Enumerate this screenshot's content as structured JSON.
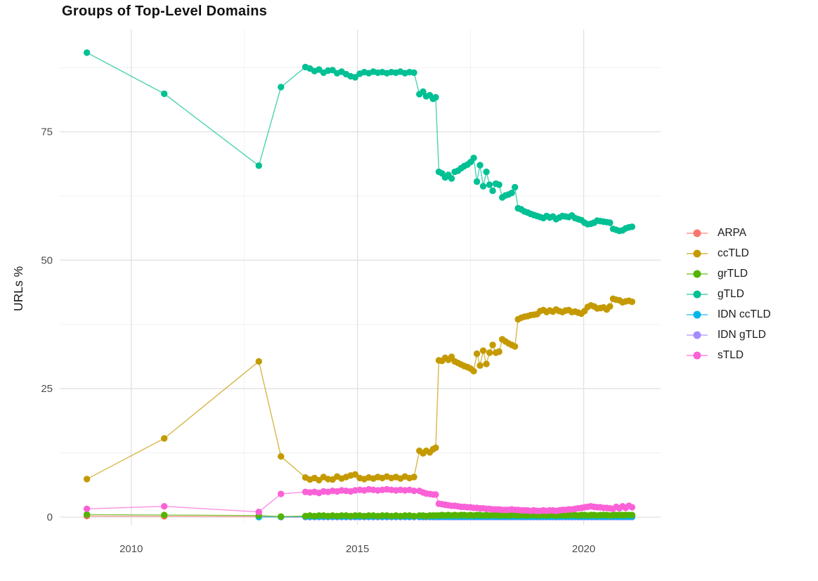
{
  "chart_data": {
    "type": "line",
    "title": "Groups of Top-Level Domains",
    "xlabel": "",
    "ylabel": "URLs %",
    "x_ticks": [
      2010,
      2015,
      2020
    ],
    "x_minor": [
      2012.5,
      2017.5
    ],
    "y_ticks": [
      0,
      25,
      50,
      75
    ],
    "y_minor": [
      12.5,
      37.5,
      62.5,
      87.5
    ],
    "xlim": [
      2008.42,
      2021.7
    ],
    "ylim": [
      -1.5,
      94.9
    ],
    "grid": true,
    "legend_position": "right",
    "draw_order": [
      "ARPA",
      "IDN gTLD",
      "IDN ccTLD",
      "grTLD",
      "ccTLD",
      "gTLD",
      "sTLD"
    ],
    "x": [
      2009.02,
      2010.73,
      2012.82,
      2013.31,
      2013.85,
      2013.95,
      2014.05,
      2014.15,
      2014.25,
      2014.35,
      2014.45,
      2014.55,
      2014.65,
      2014.75,
      2014.85,
      2014.95,
      2015.05,
      2015.15,
      2015.25,
      2015.35,
      2015.45,
      2015.55,
      2015.65,
      2015.75,
      2015.85,
      2015.95,
      2016.05,
      2016.15,
      2016.25,
      2016.37,
      2016.45,
      2016.52,
      2016.6,
      2016.67,
      2016.73,
      2016.8,
      2016.87,
      2016.94,
      2017.01,
      2017.08,
      2017.15,
      2017.22,
      2017.29,
      2017.36,
      2017.43,
      2017.5,
      2017.57,
      2017.64,
      2017.71,
      2017.78,
      2017.85,
      2017.92,
      2017.99,
      2018.06,
      2018.13,
      2018.2,
      2018.27,
      2018.34,
      2018.41,
      2018.48,
      2018.55,
      2018.62,
      2018.69,
      2018.76,
      2018.83,
      2018.9,
      2018.97,
      2019.04,
      2019.11,
      2019.18,
      2019.25,
      2019.32,
      2019.39,
      2019.46,
      2019.53,
      2019.6,
      2019.67,
      2019.74,
      2019.81,
      2019.88,
      2019.95,
      2020.02,
      2020.09,
      2020.16,
      2020.23,
      2020.3,
      2020.37,
      2020.44,
      2020.51,
      2020.58,
      2020.65,
      2020.72,
      2020.79,
      2020.86,
      2020.93,
      2021.0,
      2021.07
    ],
    "series": [
      {
        "name": "ARPA",
        "color": "#F8766D",
        "y": [
          0.2,
          0.15,
          0.1,
          0.05,
          0.05,
          0.05,
          0.05,
          0.05,
          0.05,
          0.05,
          0.05,
          0.05,
          0.05,
          0.05,
          0.05,
          0.05,
          0.05,
          0.05,
          0.05,
          0.05,
          0.05,
          0.05,
          0.05,
          0.05,
          0.05,
          0.05,
          0.05,
          0.05,
          0.05,
          0.05,
          0.05,
          0.05,
          0.05,
          0.05,
          0.05,
          0.05,
          0.05,
          0.05,
          0.05,
          0.05,
          0.05,
          0.05,
          0.05,
          0.05,
          0.05,
          0.05,
          0.05,
          0.05,
          0.05,
          0.05,
          0.05,
          0.05,
          0.05,
          0.05,
          0.05,
          0.05,
          0.05,
          0.05,
          0.05,
          0.05,
          0.05,
          0.05,
          0.05,
          0.05,
          0.05,
          0.05,
          0.05,
          0.05,
          0.05,
          0.05,
          0.05,
          0.05,
          0.05,
          0.05,
          0.05,
          0.05,
          0.05,
          0.05,
          0.05,
          0.05,
          0.05,
          0.05,
          0.05,
          0.05,
          0.05,
          0.05,
          0.05,
          0.05,
          0.05,
          0.05,
          0.05,
          0.05,
          0.05,
          0.05,
          0.05,
          0.05,
          0.05
        ]
      },
      {
        "name": "ccTLD",
        "color": "#C49A00",
        "y": [
          7.4,
          15.3,
          30.3,
          11.8,
          7.7,
          7.3,
          7.6,
          7.2,
          7.8,
          7.4,
          7.3,
          7.9,
          7.5,
          7.8,
          8.1,
          8.3,
          7.6,
          7.4,
          7.7,
          7.5,
          7.8,
          7.6,
          7.9,
          7.6,
          7.8,
          7.5,
          7.9,
          7.6,
          7.8,
          12.9,
          12.4,
          12.9,
          12.6,
          13.2,
          13.5,
          30.5,
          30.4,
          31.0,
          30.6,
          31.2,
          30.3,
          30.0,
          29.7,
          29.4,
          29.2,
          28.9,
          28.4,
          31.8,
          29.5,
          32.4,
          29.8,
          32.0,
          33.5,
          32.0,
          32.2,
          34.6,
          34.2,
          33.8,
          33.5,
          33.2,
          38.5,
          38.8,
          39.0,
          39.1,
          39.3,
          39.4,
          39.5,
          40.1,
          40.3,
          39.9,
          40.2,
          40.0,
          40.4,
          40.1,
          39.9,
          40.2,
          40.3,
          39.9,
          40.0,
          39.8,
          39.6,
          40.1,
          40.9,
          41.2,
          41.0,
          40.6,
          40.7,
          40.8,
          40.4,
          41.0,
          42.5,
          42.3,
          42.2,
          41.8,
          42.0,
          42.1,
          41.9
        ]
      },
      {
        "name": "grTLD",
        "color": "#53B400",
        "y": [
          0.5,
          0.4,
          0.3,
          0.1,
          0.2,
          0.3,
          0.2,
          0.3,
          0.3,
          0.2,
          0.3,
          0.2,
          0.3,
          0.3,
          0.2,
          0.3,
          0.3,
          0.2,
          0.3,
          0.3,
          0.2,
          0.3,
          0.3,
          0.2,
          0.3,
          0.2,
          0.3,
          0.3,
          0.2,
          0.3,
          0.3,
          0.2,
          0.3,
          0.3,
          0.3,
          0.3,
          0.4,
          0.3,
          0.4,
          0.3,
          0.4,
          0.3,
          0.4,
          0.4,
          0.3,
          0.4,
          0.3,
          0.4,
          0.4,
          0.3,
          0.4,
          0.3,
          0.4,
          0.4,
          0.3,
          0.4,
          0.4,
          0.3,
          0.4,
          0.4,
          0.3,
          0.4,
          0.4,
          0.3,
          0.4,
          0.4,
          0.3,
          0.4,
          0.4,
          0.3,
          0.4,
          0.4,
          0.3,
          0.4,
          0.4,
          0.3,
          0.4,
          0.4,
          0.4,
          0.3,
          0.4,
          0.4,
          0.3,
          0.4,
          0.4,
          0.3,
          0.4,
          0.4,
          0.4,
          0.3,
          0.4,
          0.4,
          0.4,
          0.4,
          0.4,
          0.4,
          0.4
        ]
      },
      {
        "name": "gTLD",
        "color": "#00C094",
        "y": [
          90.4,
          82.4,
          68.4,
          83.7,
          87.6,
          87.3,
          86.8,
          87.1,
          86.5,
          86.9,
          87.0,
          86.4,
          86.7,
          86.2,
          85.8,
          85.6,
          86.3,
          86.6,
          86.4,
          86.7,
          86.5,
          86.6,
          86.4,
          86.6,
          86.5,
          86.7,
          86.4,
          86.6,
          86.5,
          82.3,
          82.8,
          81.9,
          82.1,
          81.4,
          81.7,
          67.2,
          66.9,
          66.1,
          66.6,
          65.9,
          67.2,
          67.4,
          67.9,
          68.3,
          68.6,
          69.1,
          69.9,
          65.3,
          68.5,
          64.4,
          67.2,
          64.7,
          63.5,
          64.9,
          64.7,
          62.2,
          62.6,
          62.8,
          63.1,
          64.2,
          60.1,
          59.9,
          59.5,
          59.3,
          59.0,
          58.8,
          58.6,
          58.4,
          58.2,
          58.6,
          58.3,
          58.5,
          58.0,
          58.3,
          58.6,
          58.5,
          58.4,
          58.7,
          58.2,
          58.0,
          57.8,
          57.3,
          57.0,
          57.1,
          57.3,
          57.7,
          57.6,
          57.5,
          57.4,
          57.3,
          56.1,
          55.9,
          55.7,
          55.8,
          56.2,
          56.4,
          56.5
        ]
      },
      {
        "name": "IDN ccTLD",
        "color": "#00B6EB",
        "y": [
          null,
          null,
          0.0,
          0.05,
          0.1,
          0.1,
          0.1,
          0.1,
          0.1,
          0.1,
          0.1,
          0.1,
          0.1,
          0.1,
          0.1,
          0.1,
          0.1,
          0.1,
          0.1,
          0.1,
          0.1,
          0.1,
          0.1,
          0.1,
          0.1,
          0.1,
          0.1,
          0.1,
          0.1,
          0.1,
          0.1,
          0.1,
          0.1,
          0.1,
          0.1,
          0.1,
          0.1,
          0.1,
          0.1,
          0.1,
          0.1,
          0.1,
          0.1,
          0.1,
          0.1,
          0.1,
          0.1,
          0.1,
          0.1,
          0.1,
          0.1,
          0.1,
          0.1,
          0.1,
          0.1,
          0.1,
          0.1,
          0.1,
          0.1,
          0.1,
          0.1,
          0.1,
          0.1,
          0.1,
          0.1,
          0.1,
          0.1,
          0.1,
          0.1,
          0.1,
          0.1,
          0.1,
          0.1,
          0.1,
          0.1,
          0.1,
          0.1,
          0.1,
          0.1,
          0.1,
          0.1,
          0.1,
          0.1,
          0.1,
          0.1,
          0.1,
          0.1,
          0.1,
          0.1,
          0.1,
          0.1,
          0.1,
          0.1,
          0.1,
          0.1,
          0.1,
          0.1
        ]
      },
      {
        "name": "IDN gTLD",
        "color": "#A58AFF",
        "y": [
          null,
          null,
          null,
          0.0,
          0.0,
          0.0,
          0.0,
          0.0,
          0.0,
          0.0,
          0.0,
          0.0,
          0.0,
          0.0,
          0.0,
          0.0,
          0.0,
          0.0,
          0.0,
          0.0,
          0.0,
          0.0,
          0.0,
          0.0,
          0.0,
          0.0,
          0.0,
          0.0,
          0.0,
          0.0,
          0.0,
          0.0,
          0.0,
          0.0,
          0.0,
          0.0,
          0.0,
          0.0,
          0.0,
          0.0,
          0.0,
          0.0,
          0.0,
          0.0,
          0.0,
          0.0,
          0.0,
          0.0,
          0.0,
          0.0,
          0.0,
          0.0,
          0.0,
          0.0,
          0.0,
          0.0,
          0.0,
          0.0,
          0.0,
          0.0,
          0.0,
          0.0,
          0.0,
          0.0,
          0.0,
          0.0,
          0.0,
          0.0,
          0.0,
          0.0,
          0.0,
          0.0,
          0.0,
          0.0,
          0.0,
          0.0,
          0.0,
          0.0,
          0.0,
          0.0,
          0.0,
          0.0,
          0.0,
          0.0,
          0.0,
          0.0,
          0.0,
          0.0,
          0.0,
          0.0,
          0.0,
          0.0,
          0.0,
          0.0,
          0.0,
          0.0,
          0.0
        ]
      },
      {
        "name": "sTLD",
        "color": "#FB61D7",
        "y": [
          1.6,
          2.1,
          1.0,
          4.5,
          4.9,
          4.8,
          4.9,
          4.7,
          5.0,
          4.9,
          5.1,
          5.0,
          5.2,
          5.1,
          5.0,
          5.2,
          5.3,
          5.2,
          5.4,
          5.3,
          5.2,
          5.3,
          5.4,
          5.3,
          5.2,
          5.3,
          5.2,
          5.3,
          5.1,
          5.1,
          4.8,
          4.6,
          4.5,
          4.4,
          4.4,
          2.6,
          2.5,
          2.4,
          2.3,
          2.2,
          2.2,
          2.1,
          2.0,
          2.0,
          1.9,
          1.9,
          1.8,
          1.8,
          1.7,
          1.7,
          1.6,
          1.6,
          1.5,
          1.5,
          1.5,
          1.4,
          1.4,
          1.4,
          1.5,
          1.4,
          1.4,
          1.3,
          1.3,
          1.3,
          1.2,
          1.3,
          1.2,
          1.2,
          1.3,
          1.2,
          1.3,
          1.3,
          1.2,
          1.3,
          1.4,
          1.4,
          1.5,
          1.5,
          1.6,
          1.7,
          1.8,
          1.9,
          2.0,
          2.1,
          2.0,
          1.9,
          1.9,
          1.8,
          1.8,
          1.7,
          1.6,
          2.0,
          1.7,
          2.1,
          1.8,
          2.2,
          1.9
        ]
      }
    ]
  },
  "style": {
    "grid_major_color": "#E3E3E3",
    "grid_minor_color": "#F0F0F0",
    "tick_label_color": "#4d4d4d",
    "background": "#ffffff"
  }
}
